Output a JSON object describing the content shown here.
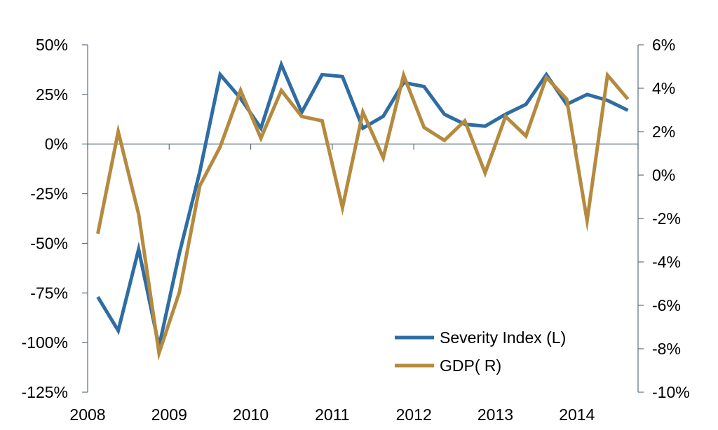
{
  "chart_data": {
    "type": "line",
    "title": "",
    "xlabel": "",
    "ylabel": "",
    "ylabel_right": "",
    "x_ticks": [
      "2008",
      "2009",
      "2010",
      "2011",
      "2012",
      "2013",
      "2014"
    ],
    "x_tick_positions": [
      2008.0,
      2009.0,
      2010.0,
      2011.0,
      2012.0,
      2013.0,
      2014.0
    ],
    "xlim": [
      2008.0,
      2014.75
    ],
    "y_left": {
      "ticks": [
        "50%",
        "25%",
        "0%",
        "-25%",
        "-50%",
        "-75%",
        "-100%",
        "-125%"
      ],
      "ylim": [
        -125,
        50
      ]
    },
    "y_right": {
      "ticks": [
        "6%",
        "4%",
        "2%",
        "0%",
        "-2%",
        "-4%",
        "-6%",
        "-8%",
        "-10%"
      ],
      "ylim": [
        -10,
        6
      ]
    },
    "grid": false,
    "legend_position": "bottom-right",
    "series": [
      {
        "name": "Severity Index (L)",
        "axis": "left",
        "color": "#2E6DA4",
        "x": [
          2008.125,
          2008.375,
          2008.625,
          2008.875,
          2009.125,
          2009.375,
          2009.625,
          2009.875,
          2010.125,
          2010.375,
          2010.625,
          2010.875,
          2011.125,
          2011.375,
          2011.625,
          2011.875,
          2012.125,
          2012.375,
          2012.625,
          2012.875,
          2013.125,
          2013.375,
          2013.625,
          2013.875,
          2014.125,
          2014.375,
          2014.625
        ],
        "y": [
          -77,
          -94,
          -53,
          -102,
          -55,
          -14,
          35,
          23,
          8,
          40,
          16,
          35,
          34,
          8,
          14,
          31,
          29,
          15,
          10,
          9,
          15,
          20,
          35,
          20,
          25,
          22,
          17
        ]
      },
      {
        "name": "GDP( R)",
        "axis": "right",
        "color": "#B58A3E",
        "x": [
          2008.125,
          2008.375,
          2008.625,
          2008.875,
          2009.125,
          2009.375,
          2009.625,
          2009.875,
          2010.125,
          2010.375,
          2010.625,
          2010.875,
          2011.125,
          2011.375,
          2011.625,
          2011.875,
          2012.125,
          2012.375,
          2012.625,
          2012.875,
          2013.125,
          2013.375,
          2013.625,
          2013.875,
          2014.125,
          2014.375,
          2014.625
        ],
        "y": [
          -2.7,
          2.0,
          -1.8,
          -8.2,
          -5.4,
          -0.5,
          1.3,
          3.9,
          1.7,
          3.9,
          2.7,
          2.5,
          -1.5,
          2.9,
          0.8,
          4.6,
          2.2,
          1.6,
          2.5,
          0.1,
          2.7,
          1.8,
          4.5,
          3.5,
          -2.1,
          4.6,
          3.5
        ]
      }
    ]
  }
}
